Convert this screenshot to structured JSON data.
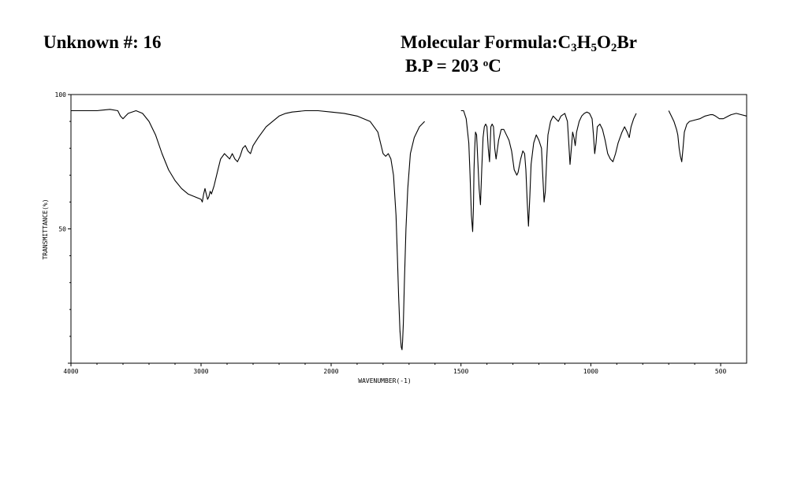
{
  "header": {
    "unknown_label": "Unknown #: 16",
    "formula_label": "Molecular Formula:",
    "formula_parts": [
      {
        "text": "C",
        "sub": "3"
      },
      {
        "text": "H",
        "sub": "5"
      },
      {
        "text": "O",
        "sub": "2"
      },
      {
        "text": "Br",
        "sub": ""
      }
    ],
    "bp_label": "B.P = 203 ",
    "bp_degree": "o",
    "bp_unit": "C"
  },
  "chart_data": {
    "type": "line",
    "xlabel": "WAVENUMBER(-1)",
    "ylabel": "TRANSMITTANCE(%)",
    "xlim": [
      4000,
      400
    ],
    "ylim": [
      0,
      100
    ],
    "x_ticks": [
      4000,
      3000,
      2000,
      1500,
      1000,
      500
    ],
    "x_tick_labels": [
      "4000",
      "3000",
      "2000",
      "1500",
      "1000",
      "500"
    ],
    "y_ticks": [
      0,
      50,
      100
    ],
    "y_tick_labels": [
      "",
      "50",
      "100"
    ],
    "grid": false,
    "series": [
      {
        "x": [
          4000,
          3800,
          3700,
          3640,
          3620,
          3600,
          3580,
          3560,
          3500,
          3450,
          3400,
          3350,
          3300,
          3250,
          3200,
          3150,
          3100,
          3050,
          3000,
          2990,
          2980,
          2970,
          2960,
          2950,
          2940,
          2930,
          2920,
          2900,
          2870,
          2850,
          2820,
          2800,
          2780,
          2760,
          2740,
          2720,
          2700,
          2680,
          2660,
          2640,
          2620,
          2600,
          2560,
          2500,
          2450,
          2400,
          2350,
          2300,
          2200,
          2100,
          2000,
          1950,
          1900,
          1850,
          1820,
          1810,
          1800,
          1790,
          1780,
          1770,
          1760,
          1750,
          1745,
          1740,
          1735,
          1730,
          1727,
          1725,
          1722,
          1718,
          1712,
          1705,
          1695,
          1680,
          1660,
          1640
        ],
        "y": [
          94,
          94,
          94.5,
          94,
          92,
          91,
          92,
          93,
          94,
          93,
          90,
          85,
          78,
          72,
          68,
          65,
          63,
          62,
          61,
          60,
          63,
          65,
          63,
          61,
          62,
          64,
          63,
          66,
          72,
          76,
          78,
          77,
          76,
          78,
          76,
          75,
          77,
          80,
          81,
          79,
          78,
          81,
          84,
          88,
          90,
          92,
          93,
          93.5,
          94,
          94,
          93.5,
          93,
          92,
          90,
          86,
          82,
          78,
          77,
          78,
          76,
          70,
          55,
          40,
          25,
          12,
          6,
          5,
          8,
          15,
          30,
          50,
          65,
          78,
          84,
          88,
          90
        ]
      },
      {
        "x": [
          1500,
          1490,
          1480,
          1470,
          1465,
          1460,
          1455,
          1452,
          1450,
          1447,
          1444,
          1440,
          1435,
          1430,
          1425,
          1420,
          1415,
          1410,
          1405,
          1400,
          1395,
          1390,
          1385,
          1380,
          1375,
          1370,
          1365,
          1355,
          1345,
          1335,
          1325,
          1315,
          1305,
          1295,
          1285,
          1280,
          1270,
          1262,
          1255,
          1250,
          1245,
          1240,
          1235,
          1230,
          1220,
          1210,
          1200,
          1190,
          1185,
          1180,
          1175,
          1170,
          1165,
          1155,
          1145,
          1135,
          1125,
          1115,
          1100,
          1090,
          1085,
          1080,
          1075,
          1070,
          1065,
          1060,
          1055,
          1045,
          1035,
          1025,
          1015,
          1005,
          995,
          990,
          985,
          980,
          975,
          965,
          955,
          945,
          935,
          925,
          915,
          905,
          895,
          880,
          870,
          860,
          852,
          845,
          835,
          825
        ],
        "y": [
          94,
          94,
          91,
          82,
          70,
          55,
          49,
          58,
          72,
          80,
          86,
          85,
          75,
          65,
          59,
          72,
          84,
          88,
          89,
          88,
          80,
          75,
          88,
          89,
          88,
          80,
          76,
          83,
          87,
          87,
          85,
          83,
          79,
          72,
          70,
          71,
          76,
          79,
          78,
          72,
          60,
          51,
          62,
          74,
          82,
          85,
          83,
          80,
          70,
          60,
          64,
          76,
          85,
          90,
          92,
          91,
          90,
          92,
          93,
          90,
          82,
          74,
          80,
          86,
          84,
          81,
          86,
          90,
          92,
          93,
          93.5,
          93,
          91,
          85,
          78,
          82,
          88,
          89,
          87,
          83,
          78,
          76,
          75,
          78,
          82,
          86,
          88,
          86,
          84,
          88,
          91,
          93
        ]
      },
      {
        "x": [
          700,
          690,
          680,
          670,
          665,
          660,
          655,
          650,
          645,
          640,
          630,
          620,
          600,
          580,
          560,
          540,
          530,
          520,
          505,
          490,
          480,
          470,
          460,
          440,
          420,
          400
        ],
        "y": [
          94,
          92,
          90,
          87,
          85,
          80,
          77,
          75,
          80,
          86,
          89,
          90,
          90.5,
          91,
          92,
          92.5,
          92.5,
          92,
          91,
          91,
          91.5,
          92,
          92.5,
          93,
          92.5,
          92
        ]
      }
    ]
  }
}
